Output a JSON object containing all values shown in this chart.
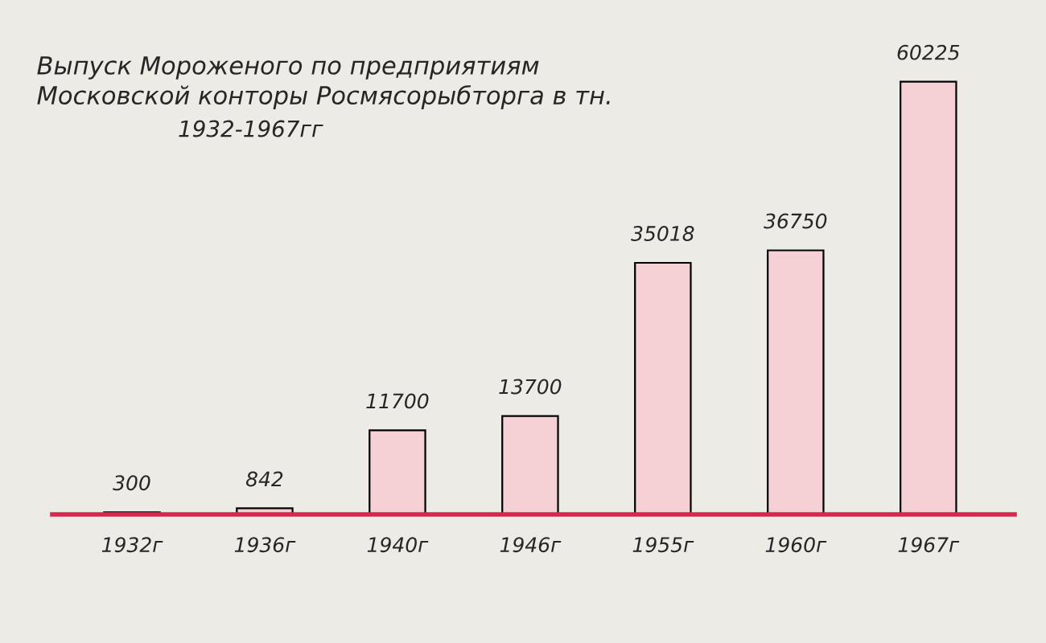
{
  "chart_data": {
    "type": "bar",
    "title": "Выпуск Мороженого по предприятиям\nМосковской конторы Росмясорыбторга в тн.",
    "subtitle": "1932-1967гг",
    "categories": [
      "1932г",
      "1936г",
      "1940г",
      "1946г",
      "1955г",
      "1960г",
      "1967г"
    ],
    "values": [
      300,
      842,
      11700,
      13700,
      35018,
      36750,
      60225
    ],
    "color": "#f5d0d5",
    "data_labels": true,
    "grid": false
  }
}
